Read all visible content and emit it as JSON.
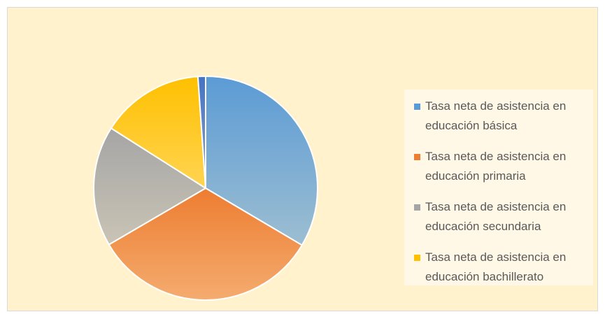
{
  "chart_data": {
    "type": "pie",
    "categories": [
      "Tasa neta de asistencia en educación básica",
      "Tasa neta de asistencia en educación primaria",
      "Tasa neta de asistencia en educación secundaria",
      "Tasa neta de asistencia en educación bachillerato",
      null
    ],
    "values": [
      33.5,
      33.1,
      17.4,
      14.9,
      1.1
    ],
    "colors": [
      "#5b9bd5",
      "#ed7d31",
      "#a5a5a5",
      "#ffc000",
      "#4472c4"
    ],
    "legend": "right"
  }
}
